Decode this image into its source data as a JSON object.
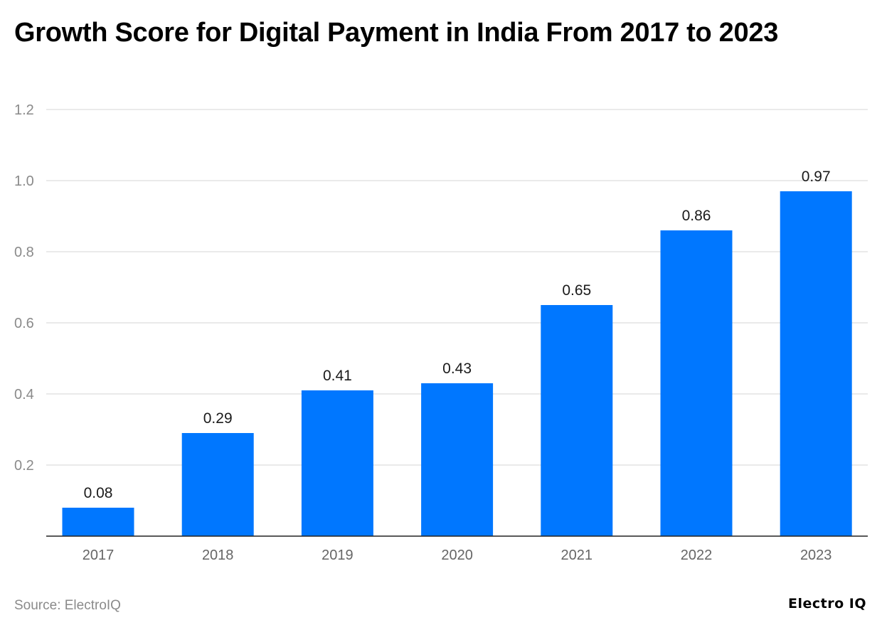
{
  "chart_data": {
    "type": "bar",
    "title": "Growth Score for Digital Payment in India From 2017 to 2023",
    "categories": [
      "2017",
      "2018",
      "2019",
      "2020",
      "2021",
      "2022",
      "2023"
    ],
    "values": [
      0.08,
      0.29,
      0.41,
      0.43,
      0.65,
      0.86,
      0.97
    ],
    "value_labels": [
      "0.08",
      "0.29",
      "0.41",
      "0.43",
      "0.65",
      "0.86",
      "0.97"
    ],
    "y_ticks": [
      0.2,
      0.4,
      0.6,
      0.8,
      1.0,
      1.2
    ],
    "y_tick_labels": [
      "0.2",
      "0.4",
      "0.6",
      "0.8",
      "1.0",
      "1.2"
    ],
    "xlabel": "",
    "ylabel": "",
    "ylim": [
      0,
      1.2
    ],
    "grid": true,
    "legend": "none",
    "bar_color": "#0077ff"
  },
  "footer": {
    "source": "Source: ElectroIQ",
    "brand": "Electro IQ"
  }
}
